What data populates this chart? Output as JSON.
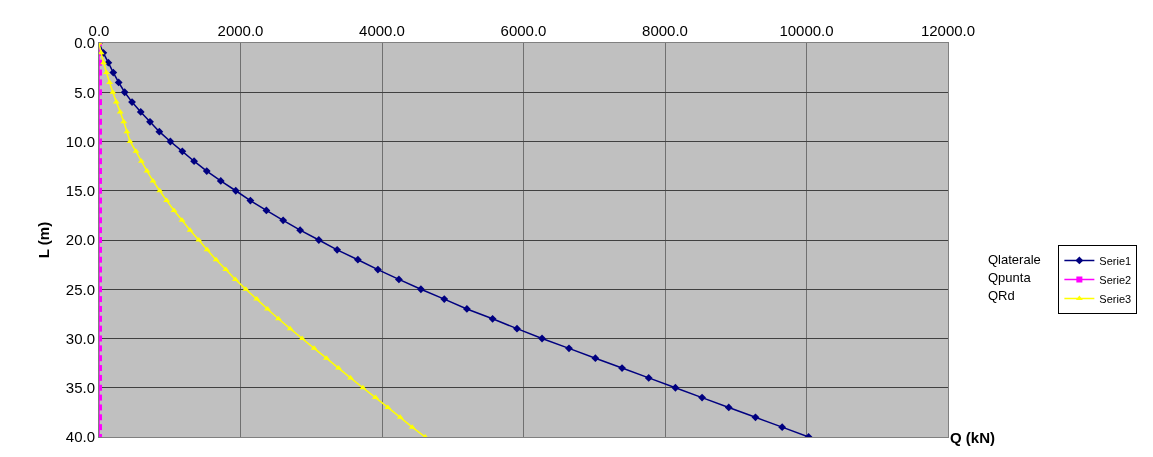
{
  "chart_data": {
    "type": "line",
    "xlabel": "Q (kN)",
    "ylabel": "L (m)",
    "xlim": [
      0,
      12000
    ],
    "xticks": [
      {
        "value": 0,
        "label": "0.0"
      },
      {
        "value": 2000,
        "label": "2000.0"
      },
      {
        "value": 4000,
        "label": "4000.0"
      },
      {
        "value": 6000,
        "label": "6000.0"
      },
      {
        "value": 8000,
        "label": "8000.0"
      },
      {
        "value": 10000,
        "label": "10000.0"
      },
      {
        "value": 12000,
        "label": "12000.0"
      }
    ],
    "ylim": [
      40,
      0
    ],
    "yticks": [
      {
        "value": 0,
        "label": "0.0"
      },
      {
        "value": 5,
        "label": "5.0"
      },
      {
        "value": 10,
        "label": "10.0"
      },
      {
        "value": 15,
        "label": "15.0"
      },
      {
        "value": 20,
        "label": "20.0"
      },
      {
        "value": 25,
        "label": "25.0"
      },
      {
        "value": 30,
        "label": "30.0"
      },
      {
        "value": 35,
        "label": "35.0"
      },
      {
        "value": 40,
        "label": "40.0"
      }
    ],
    "grid": true,
    "legend": "right",
    "annotations": [
      "Qlaterale",
      "Qpunta",
      "QRd"
    ],
    "series": [
      {
        "name": "Serie1",
        "color": "#000080",
        "marker": "diamond",
        "x": [
          0,
          61,
          132,
          202,
          278,
          363,
          467,
          590,
          721,
          853,
          1009,
          1178,
          1344,
          1523,
          1721,
          1933,
          2140,
          2366,
          2603,
          2843,
          3107,
          3366,
          3659,
          3942,
          4239,
          4550,
          4880,
          5200,
          5563,
          5908,
          6262,
          6643,
          7016,
          7393,
          7770,
          8147,
          8524,
          8901,
          9279,
          9656,
          10030
        ],
        "values": [
          0,
          1,
          2,
          3,
          4,
          5,
          6,
          7,
          8,
          9,
          10,
          11,
          12,
          13,
          14,
          15,
          16,
          17,
          18,
          19,
          20,
          21,
          22,
          23,
          24,
          25,
          26,
          27,
          28,
          29,
          30,
          31,
          32,
          33,
          34,
          35,
          36,
          37,
          38,
          39,
          40
        ]
      },
      {
        "name": "Serie2",
        "color": "#ff00ff",
        "marker": "square",
        "x": [
          0,
          0,
          0,
          0,
          0,
          0,
          0,
          0,
          0,
          0,
          0,
          0,
          0,
          0,
          0,
          0,
          0,
          0,
          0,
          0,
          0,
          0,
          0,
          0,
          0,
          0,
          0,
          0,
          0,
          0,
          0,
          0,
          0,
          0,
          0,
          0,
          0,
          0,
          0,
          0,
          0
        ],
        "values": [
          0,
          1,
          2,
          3,
          4,
          5,
          6,
          7,
          8,
          9,
          10,
          11,
          12,
          13,
          14,
          15,
          16,
          17,
          18,
          19,
          20,
          21,
          22,
          23,
          24,
          25,
          26,
          27,
          28,
          29,
          30,
          31,
          32,
          33,
          34,
          35,
          36,
          37,
          38,
          39,
          40
        ]
      },
      {
        "name": "Serie3",
        "color": "#ffff00",
        "marker": "triangle",
        "x": [
          0,
          30,
          65,
          105,
          150,
          195,
          245,
          300,
          350,
          395,
          438,
          523,
          599,
          679,
          764,
          858,
          957,
          1061,
          1174,
          1287,
          1410,
          1528,
          1655,
          1792,
          1928,
          2075,
          2230,
          2381,
          2536,
          2702,
          2871,
          3041,
          3215,
          3385,
          3555,
          3730,
          3908,
          4083,
          4257,
          4427,
          4611
        ],
        "values": [
          0,
          1,
          2,
          3,
          4,
          5,
          6,
          7,
          8,
          9,
          10,
          11,
          12,
          13,
          14,
          15,
          16,
          17,
          18,
          19,
          20,
          21,
          22,
          23,
          24,
          25,
          26,
          27,
          28,
          29,
          30,
          31,
          32,
          33,
          34,
          35,
          36,
          37,
          38,
          39,
          40
        ]
      }
    ]
  }
}
